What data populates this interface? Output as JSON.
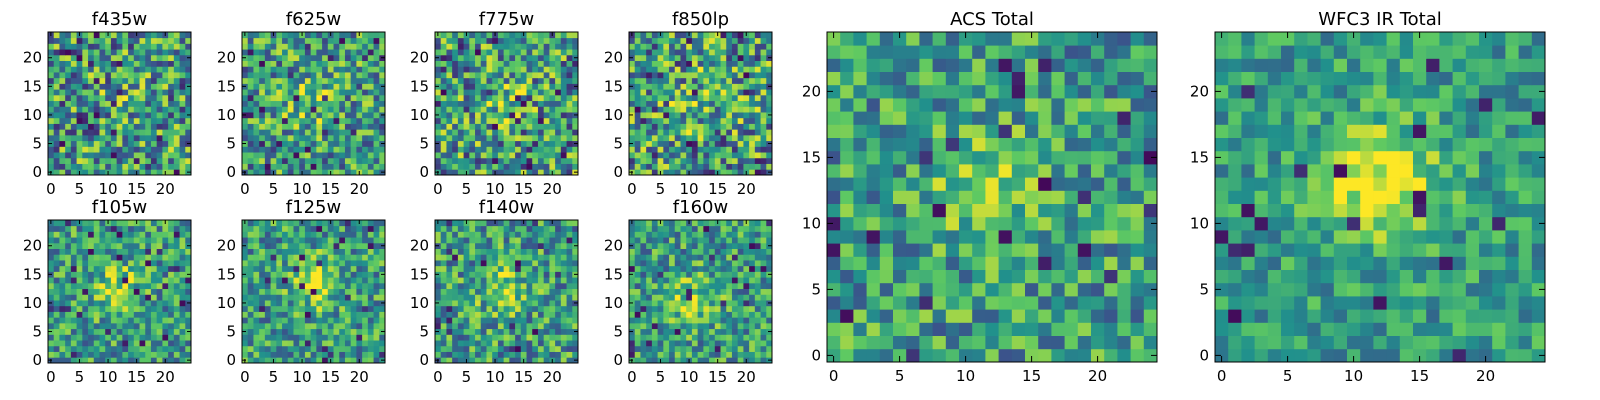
{
  "colors": {
    "background": "#ffffff",
    "axis": "#000000",
    "colormap_viridis": [
      "#440154",
      "#3b528b",
      "#21918c",
      "#5ec962",
      "#fde725"
    ]
  },
  "chart_data": [
    {
      "type": "heatmap",
      "title": "f435w",
      "grid": [
        25,
        25
      ],
      "x_ticks": [
        "0",
        "5",
        "10",
        "15",
        "20"
      ],
      "y_ticks": [
        "0",
        "5",
        "10",
        "15",
        "20"
      ],
      "xlim": [
        -0.5,
        24.5
      ],
      "ylim": [
        -0.5,
        24.5
      ],
      "colormap": "viridis",
      "source_peak": [
        11.5,
        12.5
      ],
      "peak_strength": 0.05,
      "noise": 0.4,
      "seed": 11
    },
    {
      "type": "heatmap",
      "title": "f625w",
      "grid": [
        25,
        25
      ],
      "x_ticks": [
        "0",
        "5",
        "10",
        "15",
        "20"
      ],
      "y_ticks": [
        "0",
        "5",
        "10",
        "15",
        "20"
      ],
      "xlim": [
        -0.5,
        24.5
      ],
      "ylim": [
        -0.5,
        24.5
      ],
      "colormap": "viridis",
      "source_peak": [
        11.5,
        12.5
      ],
      "peak_strength": 0.25,
      "noise": 0.36,
      "seed": 23
    },
    {
      "type": "heatmap",
      "title": "f775w",
      "grid": [
        25,
        25
      ],
      "x_ticks": [
        "0",
        "5",
        "10",
        "15",
        "20"
      ],
      "y_ticks": [
        "0",
        "5",
        "10",
        "15",
        "20"
      ],
      "xlim": [
        -0.5,
        24.5
      ],
      "ylim": [
        -0.5,
        24.5
      ],
      "colormap": "viridis",
      "source_peak": [
        11.5,
        12.5
      ],
      "peak_strength": 0.2,
      "noise": 0.4,
      "seed": 37
    },
    {
      "type": "heatmap",
      "title": "f850lp",
      "grid": [
        25,
        25
      ],
      "x_ticks": [
        "0",
        "5",
        "10",
        "15",
        "20"
      ],
      "y_ticks": [
        "0",
        "5",
        "10",
        "15",
        "20"
      ],
      "xlim": [
        -0.5,
        24.5
      ],
      "ylim": [
        -0.5,
        24.5
      ],
      "colormap": "viridis",
      "source_peak": [
        11.5,
        12.5
      ],
      "peak_strength": 0.15,
      "noise": 0.42,
      "seed": 41
    },
    {
      "type": "heatmap",
      "title": "f105w",
      "grid": [
        25,
        25
      ],
      "x_ticks": [
        "0",
        "5",
        "10",
        "15",
        "20"
      ],
      "y_ticks": [
        "0",
        "5",
        "10",
        "15",
        "20"
      ],
      "xlim": [
        -0.5,
        24.5
      ],
      "ylim": [
        -0.5,
        24.5
      ],
      "colormap": "viridis",
      "source_peak": [
        11.5,
        12.5
      ],
      "peak_strength": 0.3,
      "noise": 0.3,
      "seed": 53
    },
    {
      "type": "heatmap",
      "title": "f125w",
      "grid": [
        25,
        25
      ],
      "x_ticks": [
        "0",
        "5",
        "10",
        "15",
        "20"
      ],
      "y_ticks": [
        "0",
        "5",
        "10",
        "15",
        "20"
      ],
      "xlim": [
        -0.5,
        24.5
      ],
      "ylim": [
        -0.5,
        24.5
      ],
      "colormap": "viridis",
      "source_peak": [
        12.5,
        13.5
      ],
      "peak_strength": 0.35,
      "noise": 0.3,
      "seed": 67
    },
    {
      "type": "heatmap",
      "title": "f140w",
      "grid": [
        25,
        25
      ],
      "x_ticks": [
        "0",
        "5",
        "10",
        "15",
        "20"
      ],
      "y_ticks": [
        "0",
        "5",
        "10",
        "15",
        "20"
      ],
      "xlim": [
        -0.5,
        24.5
      ],
      "ylim": [
        -0.5,
        24.5
      ],
      "colormap": "viridis",
      "source_peak": [
        11.5,
        12.5
      ],
      "peak_strength": 0.25,
      "noise": 0.32,
      "seed": 79
    },
    {
      "type": "heatmap",
      "title": "f160w",
      "grid": [
        25,
        25
      ],
      "x_ticks": [
        "0",
        "5",
        "10",
        "15",
        "20"
      ],
      "y_ticks": [
        "0",
        "5",
        "10",
        "15",
        "20"
      ],
      "xlim": [
        -0.5,
        24.5
      ],
      "ylim": [
        -0.5,
        24.5
      ],
      "colormap": "viridis",
      "source_peak": [
        10.5,
        10.5
      ],
      "peak_strength": 0.3,
      "noise": 0.3,
      "seed": 83
    },
    {
      "type": "heatmap",
      "title": "ACS Total",
      "grid": [
        25,
        25
      ],
      "x_ticks": [
        "0",
        "5",
        "10",
        "15",
        "20"
      ],
      "y_ticks": [
        "0",
        "5",
        "10",
        "15",
        "20"
      ],
      "xlim": [
        -0.5,
        24.5
      ],
      "ylim": [
        -0.5,
        24.5
      ],
      "colormap": "viridis",
      "source_peak": [
        12.0,
        12.5
      ],
      "peak_strength": 0.3,
      "noise": 0.3,
      "seed": 97
    },
    {
      "type": "heatmap",
      "title": "WFC3 IR Total",
      "grid": [
        25,
        25
      ],
      "x_ticks": [
        "0",
        "5",
        "10",
        "15",
        "20"
      ],
      "y_ticks": [
        "0",
        "5",
        "10",
        "15",
        "20"
      ],
      "xlim": [
        -0.5,
        24.5
      ],
      "ylim": [
        -0.5,
        24.5
      ],
      "colormap": "viridis",
      "source_peak": [
        12.0,
        13.0
      ],
      "peak_strength": 0.45,
      "noise": 0.22,
      "seed": 101
    }
  ]
}
